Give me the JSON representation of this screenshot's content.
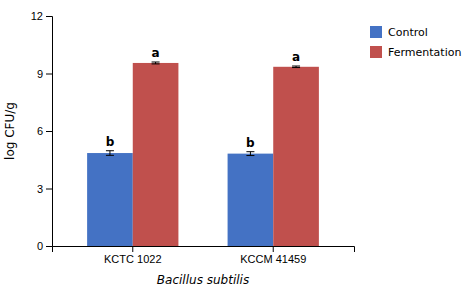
{
  "chart_data": {
    "type": "bar",
    "xlabel": "Bacillus subtilis",
    "ylabel": "log CFU/g",
    "categories": [
      "KCTC 1022",
      "KCCM 41459"
    ],
    "series": [
      {
        "name": "Control",
        "color": "#4472C4",
        "values": [
          4.85,
          4.82
        ],
        "errors": [
          0.12,
          0.1
        ],
        "annotations": [
          "b",
          "b"
        ]
      },
      {
        "name": "Fermentation",
        "color": "#C0504D",
        "values": [
          9.55,
          9.35
        ],
        "errors": [
          0.05,
          0.04
        ],
        "annotations": [
          "a",
          "a"
        ]
      }
    ],
    "ylim": [
      0,
      12
    ],
    "yticks": [
      0,
      3,
      6,
      9,
      12
    ],
    "grid": false,
    "legend": "right"
  }
}
